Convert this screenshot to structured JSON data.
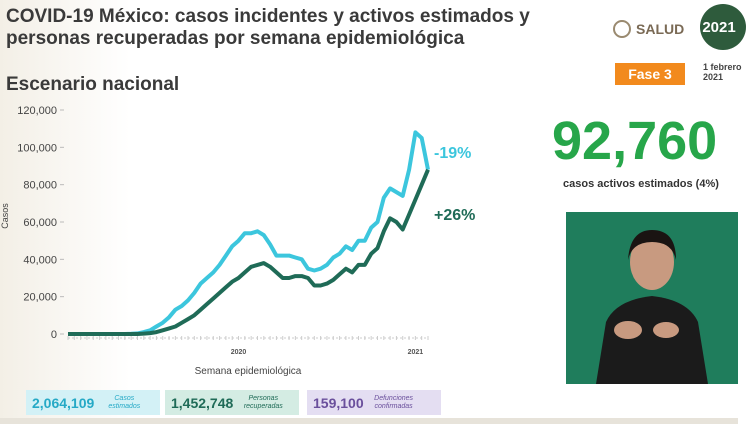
{
  "header": {
    "title": [
      "COVID-19 México: casos incidentes y activos estimados y",
      "personas recuperadas por semana epidemiológica"
    ],
    "subtitle": "Escenario nacional",
    "logo": "SALUD",
    "badge": "2021",
    "phase": "Fase 3",
    "date": [
      "1 febrero",
      "2021"
    ]
  },
  "panel": {
    "big_number": "92,760",
    "big_label": "casos activos estimados (4%)"
  },
  "summary": [
    {
      "value": "2,064,109",
      "label": "Casos estimados",
      "color": "#25a9c6",
      "bg": "#d3f1f6"
    },
    {
      "value": "1,452,748",
      "label": "Personas recuperadas",
      "color": "#1f6b57",
      "bg": "#d4ece3"
    },
    {
      "value": "159,100",
      "label": "Defunciones confirmadas",
      "color": "#6a4f9c",
      "bg": "#e4def2"
    }
  ],
  "chart_data": {
    "type": "line",
    "x_label": "Semana epidemiológica",
    "y_label": "Casos",
    "categories": [
      null,
      null,
      null,
      null,
      null,
      null,
      null,
      null,
      null,
      null,
      null,
      null,
      null,
      null,
      null,
      null,
      null,
      null,
      null,
      null,
      null,
      null,
      null,
      null,
      null,
      null,
      null,
      "2020",
      null,
      null,
      null,
      null,
      null,
      null,
      null,
      null,
      null,
      null,
      null,
      null,
      null,
      null,
      null,
      null,
      null,
      null,
      null,
      null,
      null,
      null,
      null,
      null,
      null,
      null,
      null,
      "2021",
      null,
      null
    ],
    "series": [
      {
        "name": "Casos estimados",
        "color": "#3cc6dd",
        "values": [
          0,
          0,
          0,
          0,
          0,
          0,
          0,
          0,
          0,
          0,
          100,
          300,
          1000,
          2000,
          4000,
          6000,
          9000,
          13000,
          15000,
          18000,
          22000,
          27000,
          30000,
          33000,
          37000,
          42000,
          47000,
          50000,
          54000,
          54000,
          55000,
          53000,
          48000,
          42000,
          42000,
          42000,
          41000,
          40000,
          35000,
          34000,
          35000,
          37000,
          41000,
          43000,
          47000,
          45000,
          50000,
          50000,
          57000,
          60000,
          73000,
          78000,
          76000,
          74000,
          88000,
          108000,
          105000,
          88000
        ]
      },
      {
        "name": "Personas recuperadas",
        "color": "#1f6b57",
        "values": [
          0,
          0,
          0,
          0,
          0,
          0,
          0,
          0,
          0,
          0,
          0,
          0,
          200,
          500,
          1000,
          2000,
          3000,
          4000,
          6000,
          8000,
          10000,
          13000,
          16000,
          19000,
          22000,
          25000,
          28000,
          30000,
          33000,
          36000,
          37000,
          38000,
          36000,
          33000,
          30000,
          30000,
          31000,
          31000,
          30000,
          26000,
          26000,
          27000,
          29000,
          32000,
          35000,
          33000,
          37000,
          37000,
          43000,
          46000,
          55000,
          62000,
          60000,
          56000,
          64000,
          72000,
          80000,
          88000
        ]
      }
    ],
    "annotations": [
      {
        "text": "-19%",
        "series": 0
      },
      {
        "text": "+26%",
        "series": 1
      }
    ],
    "ylim": [
      0,
      120000
    ],
    "yticks": [
      0,
      {
        "value": 20000,
        "label": "20,000"
      },
      {
        "value": 40000,
        "label": "40,000"
      },
      {
        "value": 60000,
        "label": "60,000"
      },
      {
        "value": 80000,
        "label": "80,000"
      },
      {
        "value": 100000,
        "label": "100,000"
      },
      {
        "value": 120000,
        "label": "120,000"
      }
    ],
    "grid": false
  }
}
